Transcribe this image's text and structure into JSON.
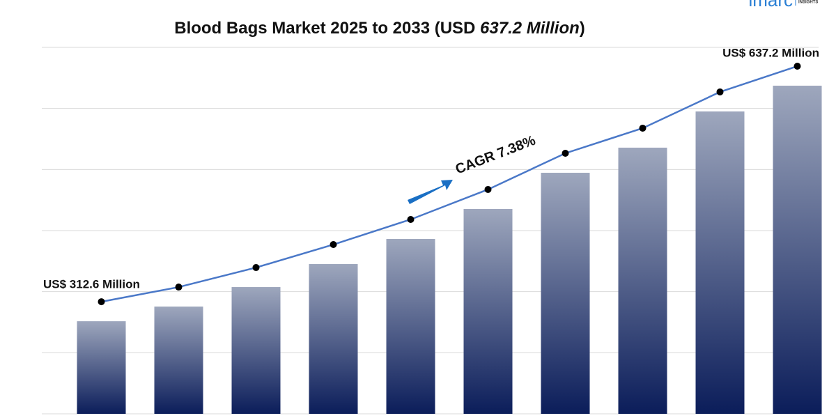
{
  "chart_data": {
    "type": "bar",
    "title": [
      "Blood Bags Market 2025 to 2033 (USD ",
      "637.2 Million",
      ")"
    ],
    "logo": "imarc",
    "logo_tagline": "INSIGHTS",
    "categories": [
      null,
      null,
      null,
      null,
      null,
      null,
      null,
      null,
      null,
      null
    ],
    "values": [
      312.6,
      332.8,
      359.7,
      391.4,
      426.0,
      467.3,
      517.2,
      551.8,
      601.7,
      637.2
    ],
    "value_labels": [
      "US$ 312.6 Million",
      null,
      null,
      null,
      null,
      null,
      null,
      null,
      null,
      "US$ 637.2 Million"
    ],
    "annotation": "CAGR 7.38%",
    "ylim": [
      185,
      690
    ],
    "bar_color_top": "#9ea7bd",
    "bar_color_bottom": "#0b1d5a",
    "line_color": "#4a78c8",
    "marker_color": "#000000"
  }
}
